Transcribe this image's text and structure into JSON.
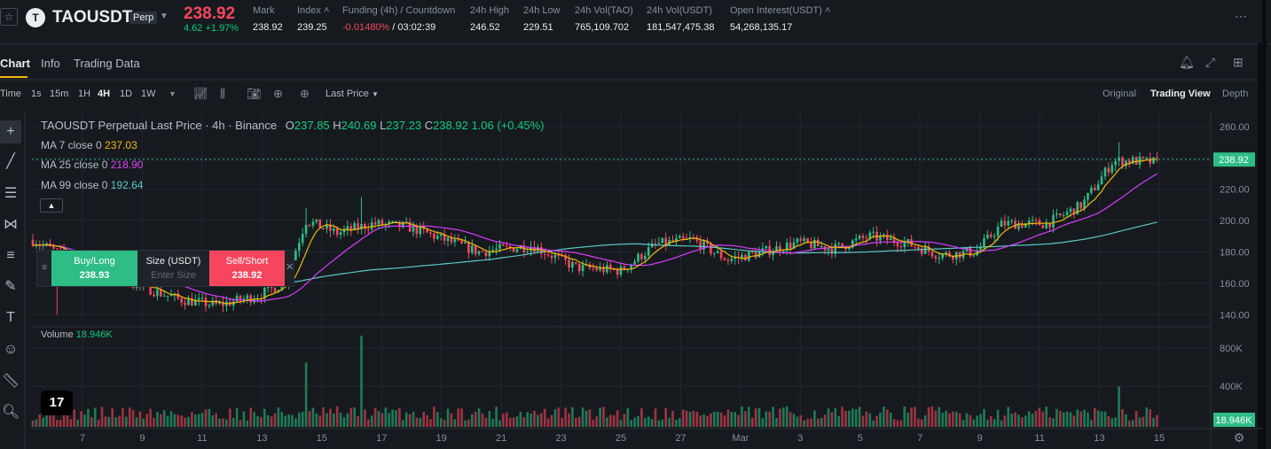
{
  "ticker": {
    "star_icon": "star-icon",
    "logo_letter": "T",
    "symbol": "TAOUSDT",
    "contract_type": "Perp",
    "last_price": "238.92",
    "change": "4.62 +1.97%",
    "stats": [
      {
        "label": "Mark",
        "value": "238.92"
      },
      {
        "label": "Index ˄",
        "value": "239.25"
      },
      {
        "label": "Funding (4h) / Countdown",
        "value_neg": "-0.01480%",
        "value": " / 03:02:39"
      },
      {
        "label": "24h High",
        "value": "246.52"
      },
      {
        "label": "24h Low",
        "value": "229.51"
      },
      {
        "label": "24h Vol(TAO)",
        "value": "765,109.702"
      },
      {
        "label": "24h Vol(USDT)",
        "value": "181,547,475.38"
      },
      {
        "label": "Open Interest(USDT) ˄",
        "value": "54,268,135.17"
      }
    ]
  },
  "tabs": [
    "Chart",
    "Info",
    "Trading Data"
  ],
  "toolbar": {
    "time_label": "Time",
    "intervals": [
      "1s",
      "15m",
      "1H",
      "4H",
      "1D",
      "1W"
    ],
    "active_interval": "4H",
    "price_source": "Last Price",
    "views": [
      "Original",
      "Trading View",
      "Depth"
    ],
    "active_view": "Trading View"
  },
  "legend": {
    "title": "TAOUSDT Perpetual Last Price · 4h · Binance",
    "o": "237.85",
    "h": "240.69",
    "l": "237.23",
    "c": "238.92",
    "chg": "1.06 (+0.45%)",
    "ma7_label": "MA 7 close 0",
    "ma7_value": "237.03",
    "ma25_label": "MA 25 close 0",
    "ma25_value": "218.90",
    "ma99_label": "MA 99 close 0",
    "ma99_value": "192.64",
    "volume_label": "Volume",
    "volume_value": "18.946K"
  },
  "order": {
    "buy_label": "Buy/Long",
    "buy_price": "238.93",
    "size_label": "Size (USDT)",
    "size_placeholder": "Enter Size",
    "sell_label": "Sell/Short",
    "sell_price": "238.92"
  },
  "colors": {
    "up": "#2ebd85",
    "down": "#f6465d",
    "ma7": "#f0b90b",
    "ma25": "#d63cff",
    "ma99": "#5fc6c5"
  },
  "chart_data": {
    "type": "candlestick",
    "price_axis_ticks": [
      "260.00",
      "240.00",
      "220.00",
      "200.00",
      "180.00",
      "160.00",
      "140.00"
    ],
    "price_range": [
      130,
      265
    ],
    "current_price_label": "238.92",
    "volume_axis_ticks": [
      "800K",
      "400K"
    ],
    "volume_range": [
      0,
      1000000
    ],
    "current_volume_label": "18.946K",
    "x_labels": [
      "7",
      "9",
      "11",
      "13",
      "15",
      "17",
      "19",
      "21",
      "23",
      "25",
      "27",
      "Mar",
      "3",
      "5",
      "7",
      "9",
      "11",
      "13",
      "15"
    ]
  }
}
